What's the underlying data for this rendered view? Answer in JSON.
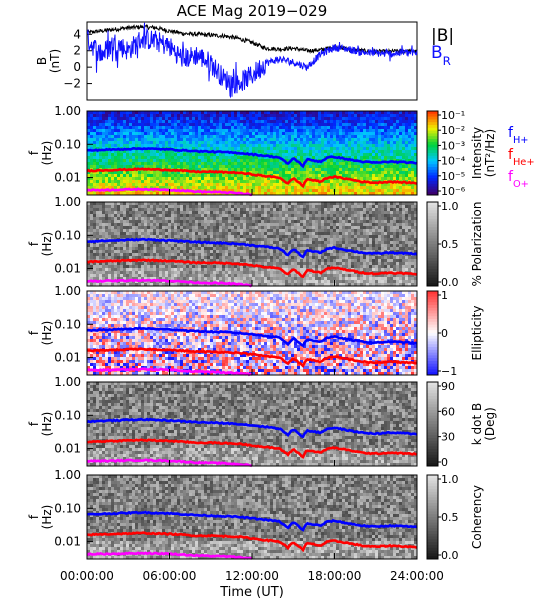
{
  "title": "ACE Mag 2019−029",
  "x_axis": {
    "label": "Time (UT)",
    "tick_labels": [
      "00:00:00",
      "06:00:00",
      "12:00:00",
      "18:00:00",
      "24:00:00"
    ],
    "range_hours": [
      0,
      24
    ],
    "tick_hours": [
      0,
      6,
      12,
      18,
      24
    ]
  },
  "colors": {
    "B_total": "#000000",
    "B_R": "#1010ff",
    "f_H": "#0000ff",
    "f_He": "#ff0000",
    "f_O": "#ff00ff",
    "spectrogram_background": "#4a4a4a"
  },
  "chart_data": [
    {
      "type": "line",
      "panel": "magnetic-field",
      "ylabel": "B\n(nT)",
      "ylim": [
        -4,
        5.5
      ],
      "y_ticks": [
        -2,
        0,
        2,
        4
      ],
      "legend": [
        "|B|",
        "B_R"
      ],
      "legend_placement": "right",
      "series": [
        {
          "name": "|B|",
          "color": "#000000",
          "x": [
            0,
            1,
            2,
            3,
            4,
            5,
            6,
            7,
            8,
            9,
            10,
            11,
            12,
            13,
            14,
            15,
            16,
            17,
            18,
            19,
            20,
            21,
            22,
            23,
            24
          ],
          "y": [
            4.2,
            4.4,
            4.6,
            4.8,
            4.9,
            4.8,
            4.4,
            4.1,
            4.0,
            3.9,
            3.8,
            3.5,
            3.0,
            2.3,
            2.2,
            2.3,
            2.0,
            2.1,
            2.5,
            2.2,
            2.0,
            1.9,
            1.9,
            2.0,
            1.9
          ]
        },
        {
          "name": "B_R",
          "color": "#1010ff",
          "x": [
            0,
            1,
            2,
            3,
            4,
            5,
            6,
            7,
            8,
            9,
            10,
            11,
            12,
            13,
            14,
            15,
            16,
            17,
            18,
            19,
            20,
            21,
            22,
            23,
            24
          ],
          "y": [
            3.5,
            1.5,
            3.0,
            2.0,
            3.5,
            3.2,
            2.5,
            1.0,
            1.5,
            0.5,
            -1.5,
            -2.0,
            -1.0,
            0.5,
            1.0,
            0.6,
            0.0,
            1.6,
            2.4,
            2.2,
            1.8,
            1.7,
            1.6,
            1.8,
            1.7
          ]
        }
      ]
    },
    {
      "type": "heatmap",
      "panel": "intensity",
      "ylabel": "f\n(Hz)",
      "y_scale": "log",
      "ylim": [
        0.003,
        1.0
      ],
      "y_tick_labels": [
        "1.00",
        "0.10",
        "0.01"
      ],
      "colorbar_label": "Intensity\n(nT²/Hz)",
      "colorbar_ticks": [
        "10⁻¹",
        "10⁻²",
        "10⁻³",
        "10⁻⁴",
        "10⁻⁵",
        "10⁻⁶"
      ],
      "legend": [
        "f_H+",
        "f_He+",
        "f_O+"
      ],
      "colormap": "rainbow"
    },
    {
      "type": "heatmap",
      "panel": "polarization",
      "ylabel": "f\n(Hz)",
      "y_scale": "log",
      "ylim": [
        0.003,
        1.0
      ],
      "y_tick_labels": [
        "1.00",
        "0.10",
        "0.01"
      ],
      "colorbar_label": "% Polarization",
      "colorbar_ticks": [
        "1.0",
        "0.5",
        "0.0"
      ],
      "colormap": "grayscale"
    },
    {
      "type": "heatmap",
      "panel": "ellipticity",
      "ylabel": "f\n(Hz)",
      "y_scale": "log",
      "ylim": [
        0.003,
        1.0
      ],
      "y_tick_labels": [
        "1.00",
        "0.10",
        "0.01"
      ],
      "colorbar_label": "Ellipticity",
      "colorbar_ticks": [
        "1",
        "0",
        "−1"
      ],
      "colormap": "red-white-blue"
    },
    {
      "type": "heatmap",
      "panel": "k-dot-b",
      "ylabel": "f\n(Hz)",
      "y_scale": "log",
      "ylim": [
        0.003,
        1.0
      ],
      "y_tick_labels": [
        "1.00",
        "0.10",
        "0.01"
      ],
      "colorbar_label": "k dot B\n(Deg)",
      "colorbar_ticks": [
        "90",
        "60",
        "30",
        "0"
      ],
      "colormap": "grayscale"
    },
    {
      "type": "heatmap",
      "panel": "coherency",
      "ylabel": "f\n(Hz)",
      "y_scale": "log",
      "ylim": [
        0.003,
        1.0
      ],
      "y_tick_labels": [
        "1.00",
        "0.10",
        "0.01"
      ],
      "colorbar_label": "Coherency",
      "colorbar_ticks": [
        "1.0",
        "0.5",
        "0.0"
      ],
      "colormap": "grayscale"
    }
  ],
  "gyrofrequency_lines": [
    {
      "name": "f_H+",
      "color": "#0000ff",
      "x": [
        0,
        2,
        4,
        6,
        8,
        9,
        10,
        11,
        12,
        13,
        14,
        14.6,
        15,
        15.7,
        16,
        17,
        17.5,
        18,
        19,
        20,
        21,
        22,
        23,
        24
      ],
      "y": [
        0.065,
        0.07,
        0.075,
        0.07,
        0.062,
        0.06,
        0.058,
        0.055,
        0.05,
        0.045,
        0.04,
        0.025,
        0.038,
        0.022,
        0.035,
        0.03,
        0.04,
        0.042,
        0.035,
        0.03,
        0.028,
        0.03,
        0.029,
        0.027
      ]
    },
    {
      "name": "f_He+",
      "color": "#ff0000",
      "x": [
        0,
        2,
        4,
        6,
        8,
        9,
        10,
        11,
        12,
        13,
        14,
        14.6,
        15,
        15.7,
        16,
        17,
        17.5,
        18,
        19,
        20,
        21,
        22,
        23,
        24
      ],
      "y": [
        0.016,
        0.017,
        0.018,
        0.017,
        0.015,
        0.015,
        0.0145,
        0.014,
        0.0125,
        0.011,
        0.01,
        0.0065,
        0.0095,
        0.0055,
        0.009,
        0.0075,
        0.01,
        0.0105,
        0.009,
        0.0075,
        0.007,
        0.0075,
        0.0072,
        0.0068
      ]
    },
    {
      "name": "f_O+",
      "color": "#ff00ff",
      "x": [
        0,
        2,
        4,
        6,
        8,
        9,
        10,
        11,
        12
      ],
      "y": [
        0.0042,
        0.0043,
        0.0045,
        0.0043,
        0.0038,
        0.0037,
        0.0036,
        0.0034,
        0.0031
      ]
    }
  ]
}
